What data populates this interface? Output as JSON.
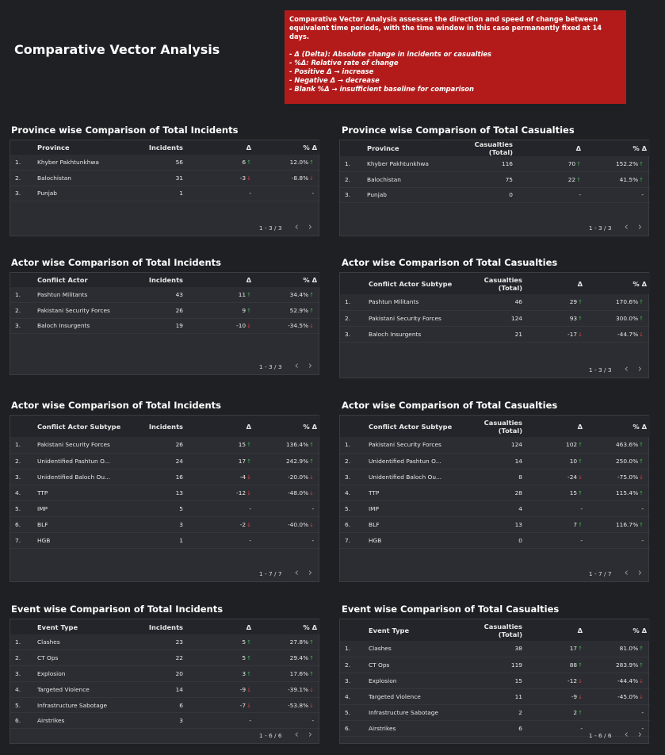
{
  "page": {
    "title": "Comparative Vector Analysis"
  },
  "info": {
    "intro": "Comparative Vector Analysis assesses the direction and speed of change between equivalent time periods, with the time window in this case permanently fixed at 14 days.",
    "bullets": [
      "- Δ (Delta): Absolute change in incidents or casualties",
      "- %Δ: Relative rate of change",
      "- Positive Δ → increase",
      "- Negative Δ → decrease",
      "- Blank %Δ → insufficient baseline for comparison"
    ]
  },
  "colors": {
    "up": "#3bb34a",
    "down": "#e03b3b",
    "info_bg": "#b31b1b"
  },
  "icons": {
    "prev": "chevron-left-icon",
    "next": "chevron-right-icon",
    "up": "arrow-up-icon",
    "down": "arrow-down-icon"
  },
  "tables": [
    {
      "title": "Province wise Comparison of Total Incidents",
      "cols": [
        "Province",
        "Incidents",
        "Δ",
        "% Δ"
      ],
      "rows": [
        [
          "1.",
          "Khyber Pakhtunkhwa",
          "56",
          "6",
          "up",
          "12.0%",
          "up"
        ],
        [
          "2.",
          "Balochistan",
          "31",
          "-3",
          "down",
          "-8.8%",
          "down"
        ],
        [
          "3.",
          "Punjab",
          "1",
          "-",
          "",
          "-",
          ""
        ]
      ],
      "pager": "1 - 3 / 3"
    },
    {
      "title": "Province wise Comparison of Total Casualties",
      "cols": [
        "Province",
        "Casualties (Total)",
        "Δ",
        "% Δ"
      ],
      "rows": [
        [
          "1.",
          "Khyber Pakhtunkhwa",
          "116",
          "70",
          "up",
          "152.2%",
          "up"
        ],
        [
          "2.",
          "Balochistan",
          "75",
          "22",
          "up",
          "41.5%",
          "up"
        ],
        [
          "3.",
          "Punjab",
          "0",
          "-",
          "",
          "-",
          ""
        ]
      ],
      "pager": "1 - 3 / 3"
    },
    {
      "title": "Actor wise Comparison of Total Incidents",
      "cols": [
        "Conflict Actor",
        "Incidents",
        "Δ",
        "% Δ"
      ],
      "rows": [
        [
          "1.",
          "Pashtun Militants",
          "43",
          "11",
          "up",
          "34.4%",
          "up"
        ],
        [
          "2.",
          "Pakistani Security Forces",
          "26",
          "9",
          "up",
          "52.9%",
          "up"
        ],
        [
          "3.",
          "Baloch Insurgents",
          "19",
          "-10",
          "down",
          "-34.5%",
          "down"
        ]
      ],
      "pager": "1 - 3 / 3"
    },
    {
      "title": "Actor wise Comparison of Total Casualties",
      "cols": [
        "Conflict Actor Subtype",
        "Casualties (Total)",
        "Δ",
        "% Δ"
      ],
      "rows": [
        [
          "1.",
          "Pashtun Militants",
          "46",
          "29",
          "up",
          "170.6%",
          "up"
        ],
        [
          "2.",
          "Pakistani Security Forces",
          "124",
          "93",
          "up",
          "300.0%",
          "up"
        ],
        [
          "3.",
          "Baloch Insurgents",
          "21",
          "-17",
          "down",
          "-44.7%",
          "down"
        ]
      ],
      "pager": "1 - 3 / 3"
    },
    {
      "title": "Actor wise Comparison of Total Incidents",
      "cols": [
        "Conflict Actor Subtype",
        "Incidents",
        "Δ",
        "% Δ"
      ],
      "rows": [
        [
          "1.",
          "Pakistani Security Forces",
          "26",
          "15",
          "up",
          "136.4%",
          "up"
        ],
        [
          "2.",
          "Unidentified Pashtun O...",
          "24",
          "17",
          "up",
          "242.9%",
          "up"
        ],
        [
          "3.",
          "Unidentified Baloch Ou...",
          "16",
          "-4",
          "down",
          "-20.0%",
          "down"
        ],
        [
          "4.",
          "TTP",
          "13",
          "-12",
          "down",
          "-48.0%",
          "down"
        ],
        [
          "5.",
          "IMP",
          "5",
          "-",
          "",
          "-",
          ""
        ],
        [
          "6.",
          "BLF",
          "3",
          "-2",
          "down",
          "-40.0%",
          "down"
        ],
        [
          "7.",
          "HGB",
          "1",
          "-",
          "",
          "-",
          ""
        ]
      ],
      "pager": "1 - 7 / 7"
    },
    {
      "title": "Actor wise Comparison of Total Casualties",
      "cols": [
        "Conflict Actor Subtype",
        "Casualties (Total)",
        "Δ",
        "% Δ"
      ],
      "rows": [
        [
          "1.",
          "Pakistani Security Forces",
          "124",
          "102",
          "up",
          "463.6%",
          "up"
        ],
        [
          "2.",
          "Unidentified Pashtun O...",
          "14",
          "10",
          "up",
          "250.0%",
          "up"
        ],
        [
          "3.",
          "Unidentified Baloch Ou...",
          "8",
          "-24",
          "down",
          "-75.0%",
          "down"
        ],
        [
          "4.",
          "TTP",
          "28",
          "15",
          "up",
          "115.4%",
          "up"
        ],
        [
          "5.",
          "IMP",
          "4",
          "-",
          "",
          "-",
          ""
        ],
        [
          "6.",
          "BLF",
          "13",
          "7",
          "up",
          "116.7%",
          "up"
        ],
        [
          "7.",
          "HGB",
          "0",
          "-",
          "",
          "-",
          ""
        ]
      ],
      "pager": "1 - 7 / 7"
    },
    {
      "title": "Event wise Comparison of Total Incidents",
      "cols": [
        "Event Type",
        "Incidents",
        "Δ",
        "% Δ"
      ],
      "rows": [
        [
          "1.",
          "Clashes",
          "23",
          "5",
          "up",
          "27.8%",
          "up"
        ],
        [
          "2.",
          "CT Ops",
          "22",
          "5",
          "up",
          "29.4%",
          "up"
        ],
        [
          "3.",
          "Explosion",
          "20",
          "3",
          "up",
          "17.6%",
          "up"
        ],
        [
          "4.",
          "Targeted Violence",
          "14",
          "-9",
          "down",
          "-39.1%",
          "down"
        ],
        [
          "5.",
          "Infrastructure Sabotage",
          "6",
          "-7",
          "down",
          "-53.8%",
          "down"
        ],
        [
          "6.",
          "Airstrikes",
          "3",
          "-",
          "",
          "-",
          ""
        ]
      ],
      "pager": "1 - 6 / 6"
    },
    {
      "title": "Event wise Comparison of Total Casualties",
      "cols": [
        "Event Type",
        "Casualties (Total)",
        "Δ",
        "% Δ"
      ],
      "rows": [
        [
          "1.",
          "Clashes",
          "38",
          "17",
          "up",
          "81.0%",
          "up"
        ],
        [
          "2.",
          "CT Ops",
          "119",
          "88",
          "up",
          "283.9%",
          "up"
        ],
        [
          "3.",
          "Explosion",
          "15",
          "-12",
          "down",
          "-44.4%",
          "down"
        ],
        [
          "4.",
          "Targeted Violence",
          "11",
          "-9",
          "down",
          "-45.0%",
          "down"
        ],
        [
          "5.",
          "Infrastructure Sabotage",
          "2",
          "2",
          "up",
          "-",
          ""
        ],
        [
          "6.",
          "Airstrikes",
          "6",
          "-",
          "",
          "-",
          ""
        ]
      ],
      "pager": "1 - 6 / 6"
    }
  ]
}
